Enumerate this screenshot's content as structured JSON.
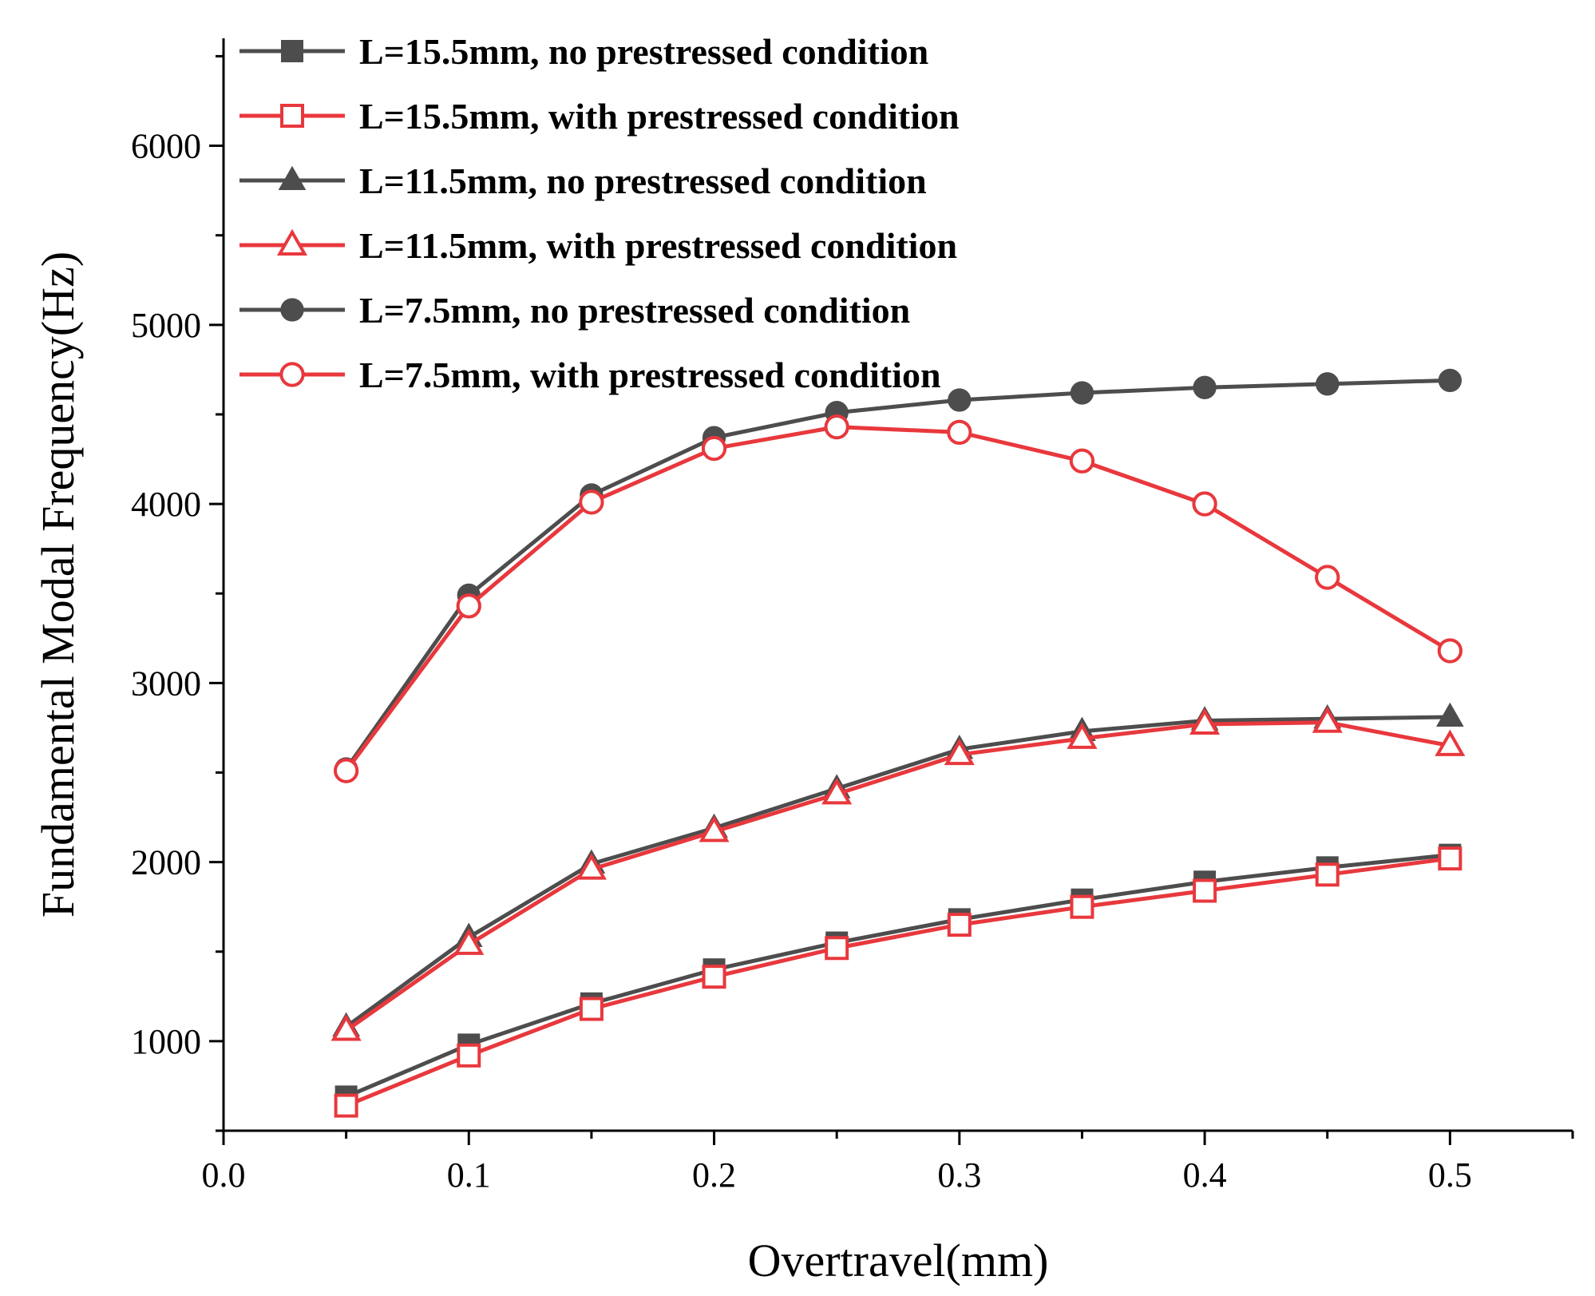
{
  "chart_data": {
    "type": "line",
    "title": "",
    "xlabel": "Overtravel(mm)",
    "ylabel": "Fundamental Modal Frequency(Hz)",
    "xlim": [
      0.0,
      0.55
    ],
    "ylim": [
      500,
      6600
    ],
    "xticks": [
      0.0,
      0.1,
      0.2,
      0.3,
      0.4,
      0.5
    ],
    "xtick_labels": [
      "0.0",
      "0.1",
      "0.2",
      "0.3",
      "0.4",
      "0.5"
    ],
    "yticks": [
      1000,
      2000,
      3000,
      4000,
      5000,
      6000
    ],
    "ytick_labels": [
      "1000",
      "2000",
      "3000",
      "4000",
      "5000",
      "6000"
    ],
    "grid": false,
    "legend_position": "top-left",
    "x": [
      0.05,
      0.1,
      0.15,
      0.2,
      0.25,
      0.3,
      0.35,
      0.4,
      0.45,
      0.5
    ],
    "series": [
      {
        "name": "L=15.5mm, no prestressed condition",
        "color": "#4d4d4d",
        "marker": "square-filled",
        "values": [
          690,
          980,
          1210,
          1400,
          1550,
          1680,
          1790,
          1890,
          1970,
          2040
        ]
      },
      {
        "name": "L=15.5mm, with prestressed condition",
        "color": "#e8383d",
        "marker": "square-open",
        "values": [
          640,
          920,
          1180,
          1360,
          1520,
          1650,
          1750,
          1840,
          1930,
          2020
        ]
      },
      {
        "name": "L=11.5mm, no prestressed condition",
        "color": "#4d4d4d",
        "marker": "triangle-filled",
        "values": [
          1080,
          1580,
          1990,
          2190,
          2410,
          2630,
          2730,
          2790,
          2800,
          2810
        ]
      },
      {
        "name": "L=11.5mm, with prestressed condition",
        "color": "#e8383d",
        "marker": "triangle-open",
        "values": [
          1060,
          1540,
          1960,
          2170,
          2380,
          2600,
          2690,
          2770,
          2780,
          2650
        ]
      },
      {
        "name": "L=7.5mm, no prestressed condition",
        "color": "#4d4d4d",
        "marker": "circle-filled",
        "values": [
          2520,
          3490,
          4050,
          4370,
          4510,
          4580,
          4620,
          4650,
          4670,
          4690
        ]
      },
      {
        "name": "L=7.5mm, with prestressed condition",
        "color": "#e8383d",
        "marker": "circle-open",
        "values": [
          2510,
          3430,
          4010,
          4310,
          4430,
          4400,
          4240,
          4000,
          3590,
          3180
        ]
      }
    ]
  }
}
